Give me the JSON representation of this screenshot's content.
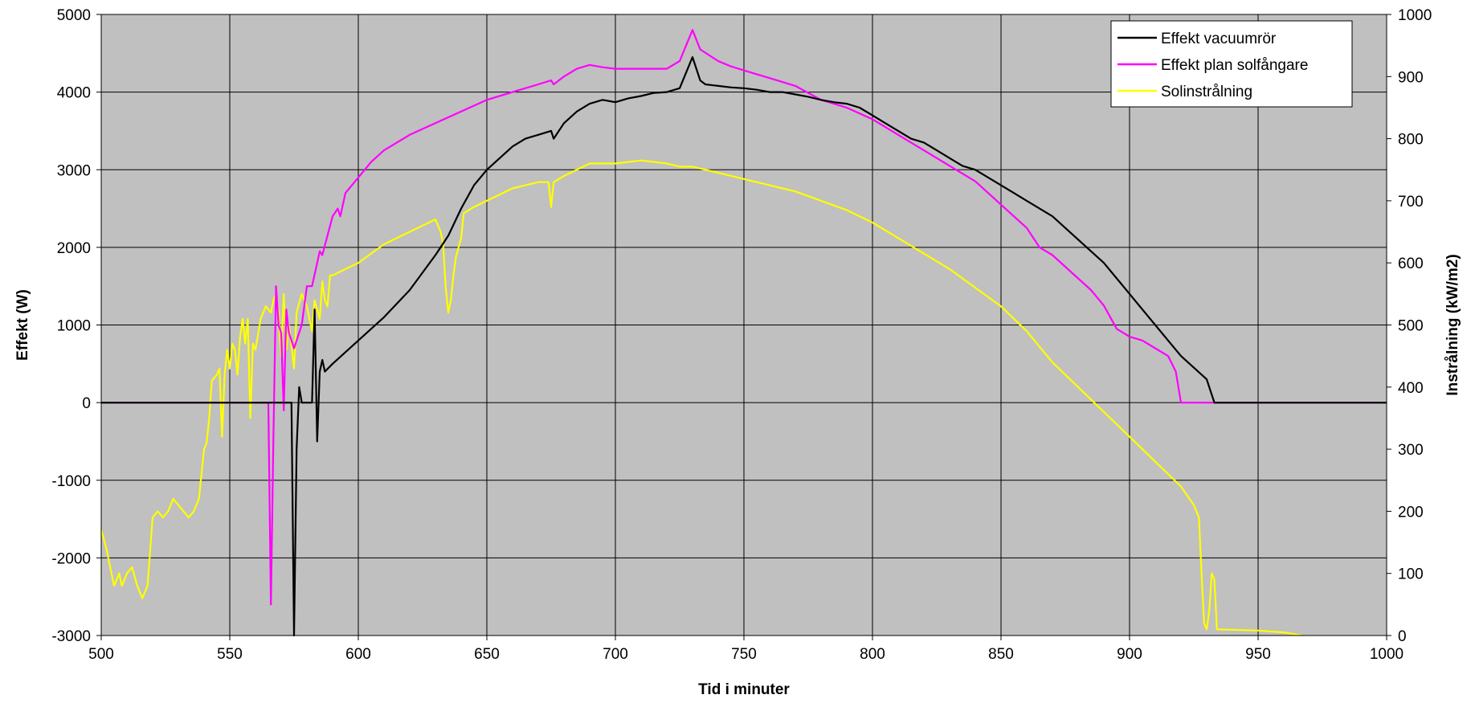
{
  "chart_data": {
    "type": "line",
    "title": "",
    "xlabel": "Tid i minuter",
    "ylabel": "Effekt (W)",
    "y2label": "Instrålning (kW/m2)",
    "xlim": [
      500,
      1000
    ],
    "ylim": [
      -3000,
      5000
    ],
    "y2lim": [
      0,
      1000
    ],
    "xticks": [
      "500",
      "550",
      "600",
      "650",
      "700",
      "750",
      "800",
      "850",
      "900",
      "950",
      "1000"
    ],
    "yticks": [
      "5000",
      "4000",
      "3000",
      "2000",
      "1000",
      "0",
      "-1000",
      "-2000",
      "-3000"
    ],
    "y2ticks": [
      "1000",
      "900",
      "800",
      "700",
      "600",
      "500",
      "400",
      "300",
      "200",
      "100",
      "0"
    ],
    "grid": true,
    "plot_background": "#c0c0c0",
    "legend_position": "top-right",
    "series": [
      {
        "name": "Effekt vacuumrör",
        "color": "#000000",
        "axis": "left",
        "points": [
          [
            500,
            0
          ],
          [
            574,
            0
          ],
          [
            575,
            -3000
          ],
          [
            576,
            -600
          ],
          [
            577,
            200
          ],
          [
            578,
            0
          ],
          [
            582,
            0
          ],
          [
            583,
            1200
          ],
          [
            584,
            -500
          ],
          [
            585,
            400
          ],
          [
            586,
            550
          ],
          [
            587,
            400
          ],
          [
            590,
            500
          ],
          [
            595,
            650
          ],
          [
            600,
            800
          ],
          [
            605,
            950
          ],
          [
            610,
            1100
          ],
          [
            620,
            1450
          ],
          [
            630,
            1900
          ],
          [
            635,
            2150
          ],
          [
            640,
            2500
          ],
          [
            645,
            2800
          ],
          [
            650,
            3000
          ],
          [
            655,
            3150
          ],
          [
            660,
            3300
          ],
          [
            665,
            3400
          ],
          [
            670,
            3450
          ],
          [
            675,
            3500
          ],
          [
            676,
            3400
          ],
          [
            680,
            3600
          ],
          [
            685,
            3750
          ],
          [
            690,
            3850
          ],
          [
            695,
            3900
          ],
          [
            700,
            3870
          ],
          [
            705,
            3920
          ],
          [
            710,
            3950
          ],
          [
            715,
            3990
          ],
          [
            720,
            4000
          ],
          [
            725,
            4050
          ],
          [
            730,
            4450
          ],
          [
            733,
            4150
          ],
          [
            735,
            4100
          ],
          [
            740,
            4080
          ],
          [
            745,
            4060
          ],
          [
            750,
            4050
          ],
          [
            755,
            4030
          ],
          [
            760,
            4000
          ],
          [
            765,
            4000
          ],
          [
            770,
            3970
          ],
          [
            775,
            3940
          ],
          [
            780,
            3900
          ],
          [
            785,
            3870
          ],
          [
            790,
            3850
          ],
          [
            795,
            3800
          ],
          [
            800,
            3700
          ],
          [
            805,
            3600
          ],
          [
            810,
            3500
          ],
          [
            815,
            3400
          ],
          [
            820,
            3350
          ],
          [
            825,
            3250
          ],
          [
            830,
            3150
          ],
          [
            835,
            3050
          ],
          [
            840,
            3000
          ],
          [
            845,
            2900
          ],
          [
            850,
            2800
          ],
          [
            855,
            2700
          ],
          [
            860,
            2600
          ],
          [
            865,
            2500
          ],
          [
            870,
            2400
          ],
          [
            875,
            2250
          ],
          [
            880,
            2100
          ],
          [
            885,
            1950
          ],
          [
            890,
            1800
          ],
          [
            895,
            1600
          ],
          [
            900,
            1400
          ],
          [
            905,
            1200
          ],
          [
            910,
            1000
          ],
          [
            915,
            800
          ],
          [
            920,
            600
          ],
          [
            925,
            450
          ],
          [
            930,
            300
          ],
          [
            933,
            0
          ],
          [
            1000,
            0
          ]
        ]
      },
      {
        "name": "Effekt plan solfångare",
        "color": "#ff00ff",
        "axis": "left",
        "points": [
          [
            500,
            0
          ],
          [
            565,
            0
          ],
          [
            566,
            -2600
          ],
          [
            567,
            -400
          ],
          [
            568,
            1500
          ],
          [
            569,
            1000
          ],
          [
            570,
            900
          ],
          [
            571,
            -100
          ],
          [
            572,
            1200
          ],
          [
            573,
            900
          ],
          [
            575,
            700
          ],
          [
            578,
            1000
          ],
          [
            580,
            1500
          ],
          [
            582,
            1500
          ],
          [
            585,
            1950
          ],
          [
            586,
            1900
          ],
          [
            590,
            2400
          ],
          [
            592,
            2500
          ],
          [
            593,
            2400
          ],
          [
            595,
            2700
          ],
          [
            600,
            2900
          ],
          [
            605,
            3100
          ],
          [
            610,
            3250
          ],
          [
            620,
            3450
          ],
          [
            630,
            3600
          ],
          [
            640,
            3750
          ],
          [
            650,
            3900
          ],
          [
            660,
            4000
          ],
          [
            670,
            4100
          ],
          [
            675,
            4150
          ],
          [
            676,
            4100
          ],
          [
            680,
            4200
          ],
          [
            685,
            4300
          ],
          [
            690,
            4350
          ],
          [
            695,
            4320
          ],
          [
            700,
            4300
          ],
          [
            710,
            4300
          ],
          [
            720,
            4300
          ],
          [
            725,
            4400
          ],
          [
            730,
            4800
          ],
          [
            733,
            4550
          ],
          [
            740,
            4400
          ],
          [
            745,
            4330
          ],
          [
            750,
            4280
          ],
          [
            755,
            4230
          ],
          [
            760,
            4180
          ],
          [
            765,
            4130
          ],
          [
            770,
            4080
          ],
          [
            775,
            3990
          ],
          [
            780,
            3900
          ],
          [
            790,
            3800
          ],
          [
            800,
            3650
          ],
          [
            810,
            3450
          ],
          [
            820,
            3250
          ],
          [
            830,
            3050
          ],
          [
            840,
            2850
          ],
          [
            850,
            2550
          ],
          [
            860,
            2250
          ],
          [
            865,
            2000
          ],
          [
            870,
            1900
          ],
          [
            875,
            1750
          ],
          [
            880,
            1600
          ],
          [
            885,
            1450
          ],
          [
            890,
            1250
          ],
          [
            895,
            950
          ],
          [
            900,
            850
          ],
          [
            905,
            800
          ],
          [
            910,
            700
          ],
          [
            915,
            600
          ],
          [
            918,
            400
          ],
          [
            920,
            0
          ],
          [
            1000,
            0
          ]
        ]
      },
      {
        "name": "Solinstrålning",
        "color": "#ffff00",
        "axis": "right",
        "points": [
          [
            500,
            170
          ],
          [
            502,
            140
          ],
          [
            505,
            80
          ],
          [
            507,
            100
          ],
          [
            508,
            80
          ],
          [
            510,
            100
          ],
          [
            512,
            110
          ],
          [
            514,
            80
          ],
          [
            516,
            60
          ],
          [
            518,
            80
          ],
          [
            520,
            190
          ],
          [
            522,
            200
          ],
          [
            524,
            190
          ],
          [
            526,
            200
          ],
          [
            528,
            220
          ],
          [
            530,
            210
          ],
          [
            532,
            200
          ],
          [
            534,
            190
          ],
          [
            536,
            200
          ],
          [
            538,
            220
          ],
          [
            540,
            300
          ],
          [
            541,
            310
          ],
          [
            542,
            350
          ],
          [
            543,
            410
          ],
          [
            545,
            420
          ],
          [
            546,
            430
          ],
          [
            547,
            320
          ],
          [
            548,
            420
          ],
          [
            549,
            460
          ],
          [
            550,
            430
          ],
          [
            551,
            470
          ],
          [
            552,
            460
          ],
          [
            553,
            420
          ],
          [
            554,
            480
          ],
          [
            555,
            510
          ],
          [
            556,
            470
          ],
          [
            557,
            510
          ],
          [
            558,
            350
          ],
          [
            559,
            470
          ],
          [
            560,
            460
          ],
          [
            562,
            510
          ],
          [
            564,
            530
          ],
          [
            566,
            520
          ],
          [
            567,
            540
          ],
          [
            568,
            550
          ],
          [
            569,
            520
          ],
          [
            570,
            450
          ],
          [
            571,
            550
          ],
          [
            572,
            460
          ],
          [
            573,
            500
          ],
          [
            575,
            430
          ],
          [
            576,
            520
          ],
          [
            578,
            550
          ],
          [
            580,
            530
          ],
          [
            582,
            490
          ],
          [
            583,
            540
          ],
          [
            585,
            510
          ],
          [
            586,
            570
          ],
          [
            587,
            540
          ],
          [
            588,
            530
          ],
          [
            589,
            580
          ],
          [
            590,
            580
          ],
          [
            595,
            590
          ],
          [
            600,
            600
          ],
          [
            610,
            630
          ],
          [
            620,
            650
          ],
          [
            625,
            660
          ],
          [
            630,
            670
          ],
          [
            632,
            650
          ],
          [
            633,
            630
          ],
          [
            634,
            560
          ],
          [
            635,
            520
          ],
          [
            636,
            540
          ],
          [
            637,
            580
          ],
          [
            638,
            610
          ],
          [
            640,
            640
          ],
          [
            641,
            680
          ],
          [
            645,
            690
          ],
          [
            650,
            700
          ],
          [
            660,
            720
          ],
          [
            670,
            730
          ],
          [
            674,
            730
          ],
          [
            675,
            690
          ],
          [
            676,
            730
          ],
          [
            680,
            740
          ],
          [
            685,
            750
          ],
          [
            690,
            760
          ],
          [
            700,
            760
          ],
          [
            710,
            765
          ],
          [
            720,
            760
          ],
          [
            725,
            755
          ],
          [
            730,
            755
          ],
          [
            740,
            745
          ],
          [
            750,
            735
          ],
          [
            760,
            725
          ],
          [
            770,
            715
          ],
          [
            780,
            700
          ],
          [
            790,
            685
          ],
          [
            800,
            665
          ],
          [
            810,
            640
          ],
          [
            820,
            615
          ],
          [
            830,
            590
          ],
          [
            840,
            560
          ],
          [
            850,
            530
          ],
          [
            860,
            490
          ],
          [
            870,
            440
          ],
          [
            880,
            400
          ],
          [
            890,
            360
          ],
          [
            900,
            320
          ],
          [
            910,
            280
          ],
          [
            920,
            240
          ],
          [
            925,
            210
          ],
          [
            927,
            190
          ],
          [
            928,
            100
          ],
          [
            929,
            20
          ],
          [
            930,
            10
          ],
          [
            931,
            40
          ],
          [
            932,
            100
          ],
          [
            933,
            90
          ],
          [
            934,
            10
          ],
          [
            950,
            8
          ],
          [
            960,
            5
          ],
          [
            967,
            0
          ]
        ]
      }
    ]
  }
}
